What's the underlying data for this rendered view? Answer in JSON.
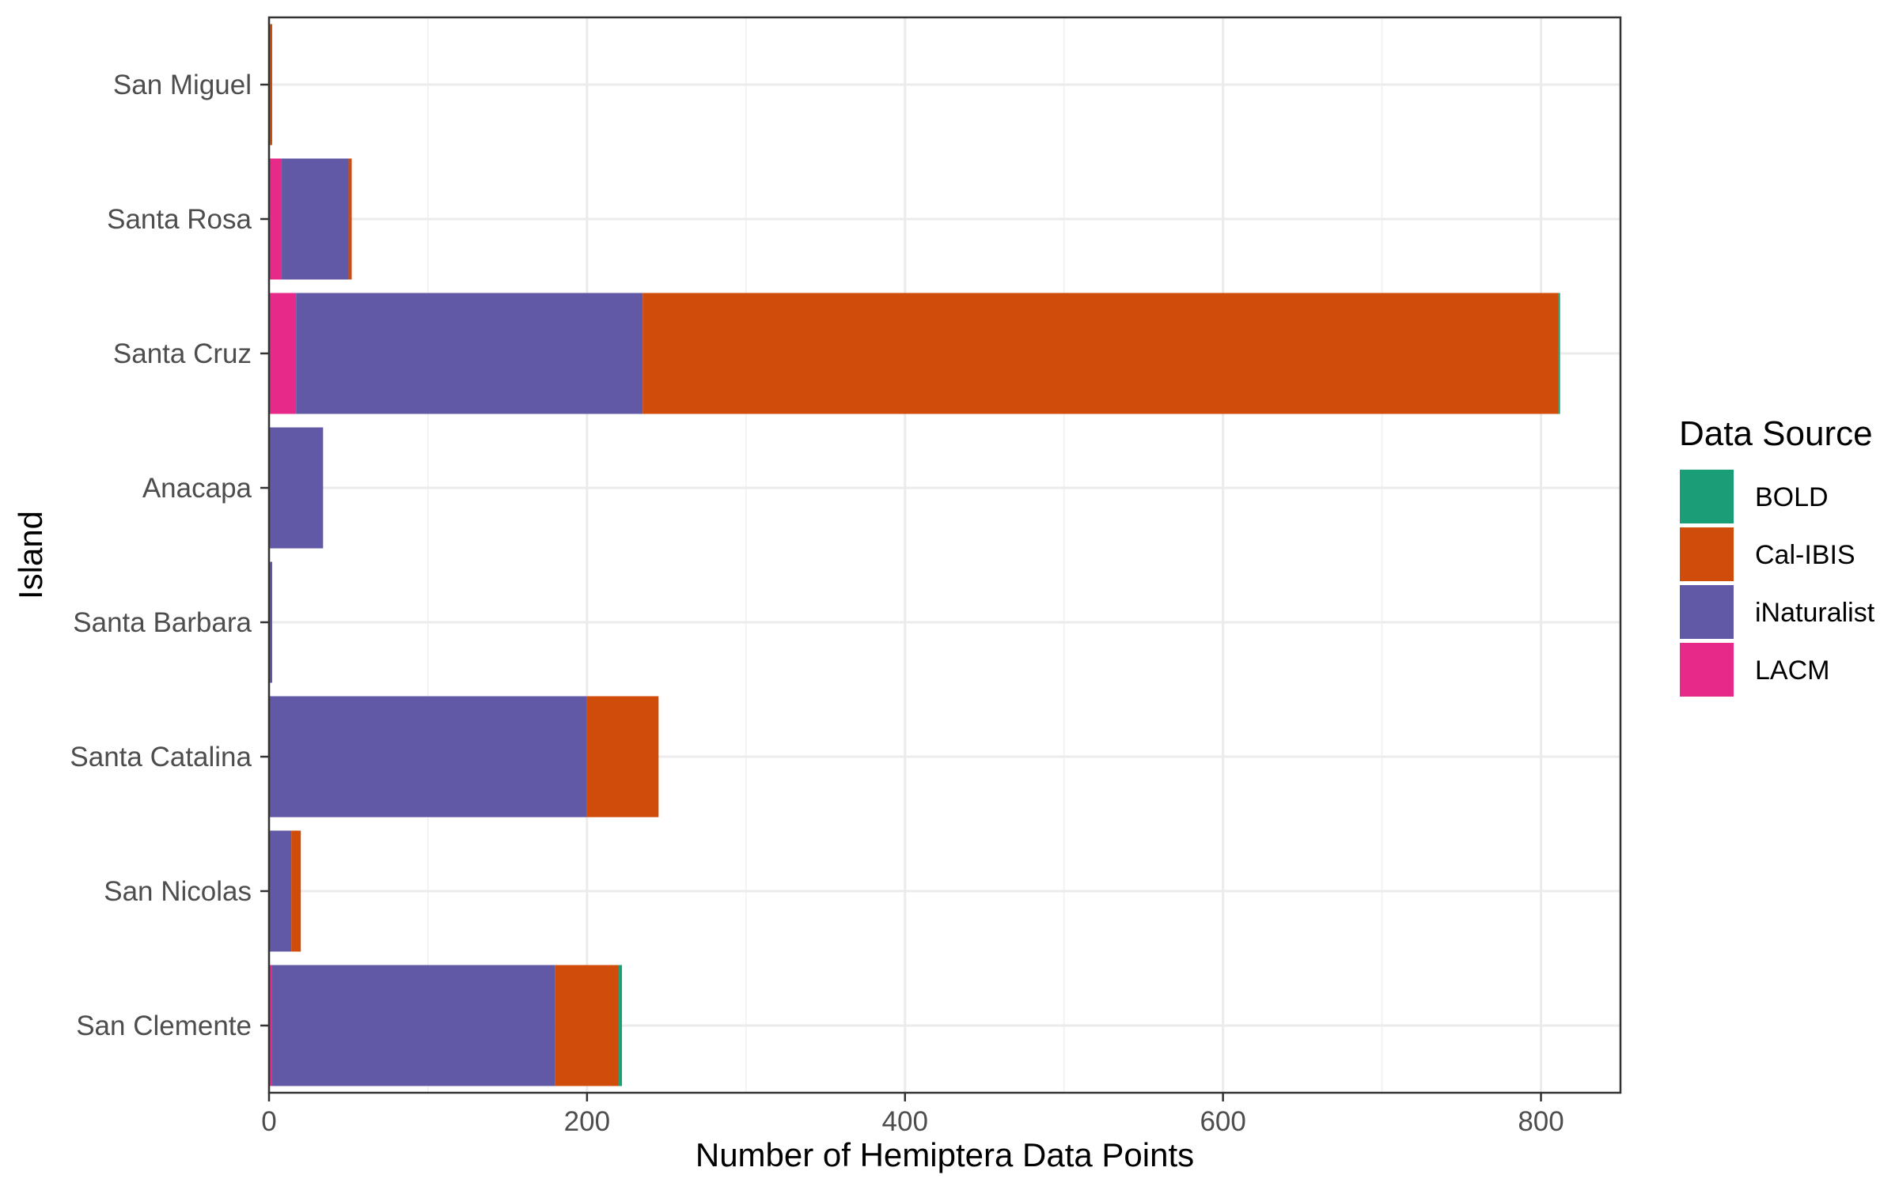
{
  "chart_data": {
    "type": "bar",
    "orientation": "horizontal",
    "stacked": true,
    "title": "",
    "xlabel": "Number of Hemiptera Data Points",
    "ylabel": "Island",
    "xlim": [
      0,
      850
    ],
    "x_ticks": [
      0,
      200,
      400,
      600,
      800
    ],
    "grid": true,
    "legend_position": "right",
    "categories": [
      "San Miguel",
      "Santa Rosa",
      "Santa Cruz",
      "Anacapa",
      "Santa Barbara",
      "Santa Catalina",
      "San Nicolas",
      "San Clemente"
    ],
    "series": [
      {
        "name": "LACM",
        "color": "#E7298A",
        "values": [
          0,
          8,
          17,
          0,
          0,
          0,
          0,
          2
        ]
      },
      {
        "name": "iNaturalist",
        "color": "#6159A5",
        "values": [
          0,
          42,
          218,
          34,
          2,
          200,
          14,
          178
        ]
      },
      {
        "name": "Cal-IBIS",
        "color": "#D04C0A",
        "values": [
          2,
          2,
          576,
          0,
          0,
          45,
          6,
          40
        ]
      },
      {
        "name": "BOLD",
        "color": "#1B9E77",
        "values": [
          0,
          0,
          1,
          0,
          0,
          0,
          0,
          2
        ]
      }
    ],
    "legend": {
      "title": "Data Source",
      "order": [
        "BOLD",
        "Cal-IBIS",
        "iNaturalist",
        "LACM"
      ]
    }
  }
}
